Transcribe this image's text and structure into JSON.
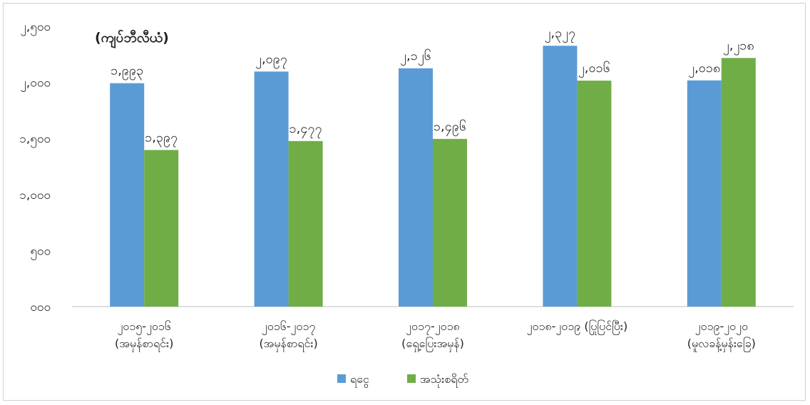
{
  "chart_data": {
    "type": "bar",
    "title": "(ကျပ်ဘီလီယံ)",
    "categories": [
      [
        "၂၀၁၅-၂၀၁၆",
        "(အမှန်စာရင်း)"
      ],
      [
        "၂၀၁၆-၂၀၁၇",
        "(အမှန်စာရင်း)"
      ],
      [
        "၂၀၁၇-၂၀၁၈",
        "(ရှေ့ပြေးအမှန်)"
      ],
      [
        "၂၀၁၈-၂၀၁၉ (ပြုပြင်ပြီး)"
      ],
      [
        "၂၀၁၉-၂၀၂၀",
        "(မူလခန့်မှန်းခြေ)"
      ]
    ],
    "series": [
      {
        "name": "ရငွေ",
        "color": "#5b9bd5",
        "values": [
          1993,
          2097,
          2126,
          2327,
          2018
        ],
        "labels": [
          "၁,၉၉၃",
          "၂,၀၉၇",
          "၂,၁၂၆",
          "၂,၃၂၇",
          "၂,၀၁၈"
        ]
      },
      {
        "name": "အသုံးစရိတ်",
        "color": "#70ad47",
        "values": [
          1397,
          1477,
          1496,
          2016,
          2218
        ],
        "labels": [
          "၁,၃၉၇",
          "၁,၄၇၇",
          "၁,၄၉၆",
          "၂,၀၁၆",
          "၂,၂၁၈"
        ]
      }
    ],
    "ylim": [
      0,
      2500
    ],
    "yticks": [
      0,
      500,
      1000,
      1500,
      2000,
      2500
    ],
    "ytick_labels": [
      "၀၀၀",
      "၅၀၀",
      "၁,၀၀၀",
      "၁,၅၀၀",
      "၂,၀၀၀",
      "၂,၅၀၀"
    ],
    "grid": false,
    "legend": "bottom"
  }
}
